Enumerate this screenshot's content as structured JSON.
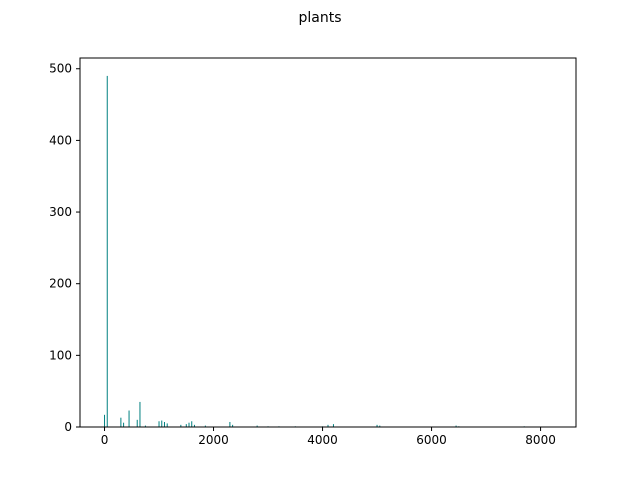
{
  "chart_data": {
    "type": "bar",
    "title": "plants",
    "xlabel": "",
    "ylabel": "",
    "xlim": [
      -450,
      8650
    ],
    "ylim": [
      0,
      515
    ],
    "xticks": [
      0,
      2000,
      4000,
      6000,
      8000
    ],
    "xtick_labels": [
      "0",
      "2000",
      "4000",
      "6000",
      "8000"
    ],
    "yticks": [
      0,
      100,
      200,
      300,
      400,
      500
    ],
    "ytick_labels": [
      "0",
      "100",
      "200",
      "300",
      "400",
      "500"
    ],
    "grid": false,
    "bar_color": "#008080",
    "x": [
      0,
      50,
      300,
      350,
      450,
      600,
      650,
      750,
      1000,
      1050,
      1100,
      1150,
      1400,
      1500,
      1550,
      1600,
      1650,
      1850,
      2300,
      2350,
      2800,
      3000,
      3200,
      3500,
      4000,
      4100,
      4200,
      5000,
      5050,
      6450,
      6500,
      7700
    ],
    "values": [
      17,
      490,
      13,
      6,
      23,
      10,
      35,
      2,
      8,
      9,
      7,
      5,
      3,
      4,
      6,
      8,
      3,
      2,
      7,
      3,
      2,
      1,
      1,
      1,
      1,
      3,
      4,
      3,
      2,
      2,
      1,
      1
    ],
    "bar_width": 12
  }
}
